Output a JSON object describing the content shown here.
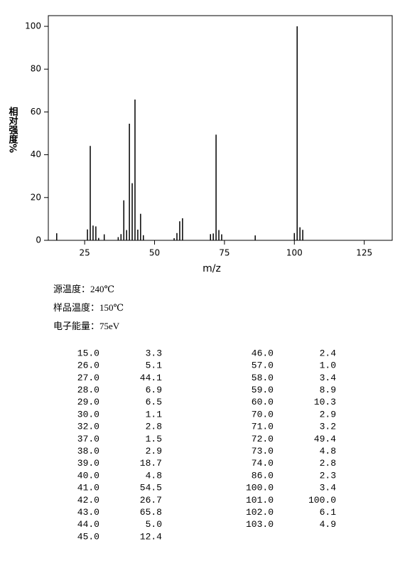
{
  "chart_data": {
    "type": "bar",
    "x_label": "m/z",
    "y_label": "相对强度%",
    "x": [
      15,
      26,
      27,
      28,
      29,
      30,
      32,
      37,
      38,
      39,
      40,
      41,
      42,
      43,
      44,
      45,
      46,
      57,
      58,
      59,
      60,
      70,
      71,
      72,
      73,
      74,
      86,
      100,
      101,
      102,
      103
    ],
    "values": [
      3.3,
      5.1,
      44.1,
      6.9,
      6.5,
      1.1,
      2.8,
      1.5,
      2.9,
      18.7,
      4.8,
      54.5,
      26.7,
      65.8,
      5.0,
      12.4,
      2.4,
      1.0,
      3.4,
      8.9,
      10.3,
      2.9,
      3.2,
      49.4,
      4.8,
      2.8,
      2.3,
      3.4,
      100.0,
      6.1,
      4.9
    ],
    "color": "#000000",
    "xlim": [
      12,
      135
    ],
    "xticks": [
      25,
      50,
      75,
      100,
      125
    ],
    "ylim": [
      0,
      105
    ],
    "yticks": [
      0,
      20,
      40,
      60,
      80,
      100
    ]
  },
  "conditions": [
    "源温度：240℃",
    "样品温度：150℃",
    "电子能量：75eV"
  ],
  "table": {
    "left": [
      [
        "15.0",
        "3.3"
      ],
      [
        "26.0",
        "5.1"
      ],
      [
        "27.0",
        "44.1"
      ],
      [
        "28.0",
        "6.9"
      ],
      [
        "29.0",
        "6.5"
      ],
      [
        "30.0",
        "1.1"
      ],
      [
        "32.0",
        "2.8"
      ],
      [
        "37.0",
        "1.5"
      ],
      [
        "38.0",
        "2.9"
      ],
      [
        "39.0",
        "18.7"
      ],
      [
        "40.0",
        "4.8"
      ],
      [
        "41.0",
        "54.5"
      ],
      [
        "42.0",
        "26.7"
      ],
      [
        "43.0",
        "65.8"
      ],
      [
        "44.0",
        "5.0"
      ],
      [
        "45.0",
        "12.4"
      ]
    ],
    "right": [
      [
        "46.0",
        "2.4"
      ],
      [
        "57.0",
        "1.0"
      ],
      [
        "58.0",
        "3.4"
      ],
      [
        "59.0",
        "8.9"
      ],
      [
        "60.0",
        "10.3"
      ],
      [
        "70.0",
        "2.9"
      ],
      [
        "71.0",
        "3.2"
      ],
      [
        "72.0",
        "49.4"
      ],
      [
        "73.0",
        "4.8"
      ],
      [
        "74.0",
        "2.8"
      ],
      [
        "86.0",
        "2.3"
      ],
      [
        "100.0",
        "3.4"
      ],
      [
        "101.0",
        "100.0"
      ],
      [
        "102.0",
        "6.1"
      ],
      [
        "103.0",
        "4.9"
      ]
    ]
  }
}
